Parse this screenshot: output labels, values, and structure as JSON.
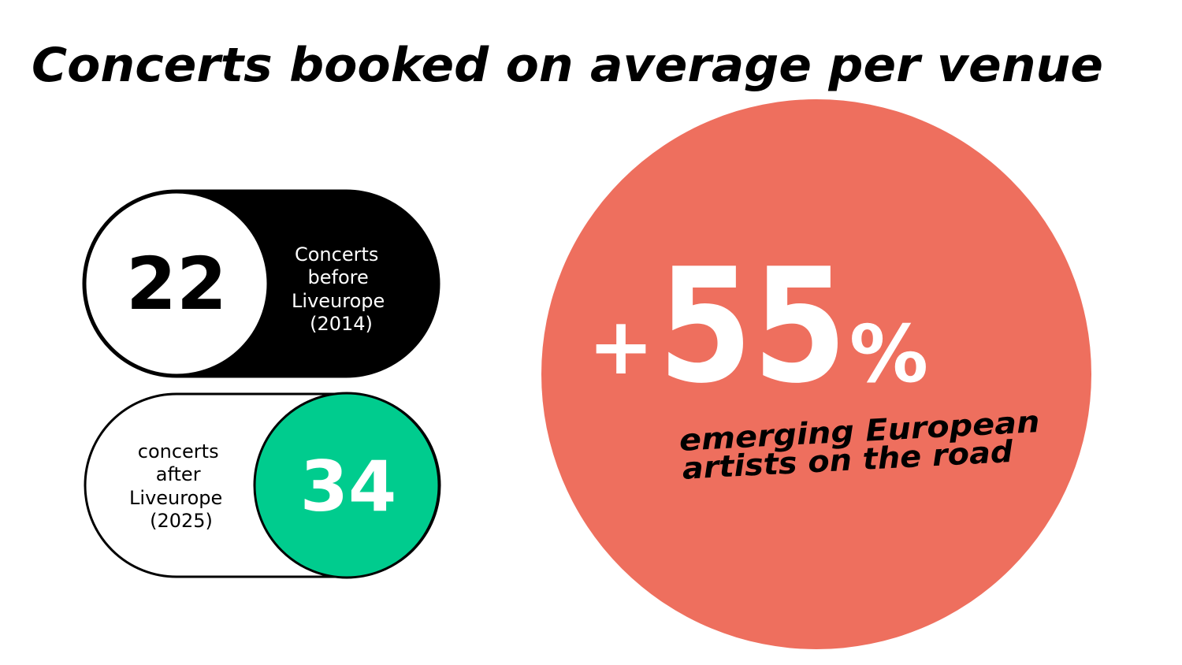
{
  "header": {
    "title": "Concerts booked on average per venue"
  },
  "cards": [
    {
      "number": "22",
      "label_lines": [
        "Concerts",
        "before",
        "Liveurope",
        "(2014)"
      ]
    },
    {
      "number": "34",
      "label_lines": [
        "concerts",
        "after",
        "Liveurope",
        "(2025)"
      ]
    }
  ],
  "stat": {
    "sign": "+",
    "number": "55",
    "unit": "%",
    "caption_lines": [
      "emerging European",
      "artists on the road"
    ]
  }
}
